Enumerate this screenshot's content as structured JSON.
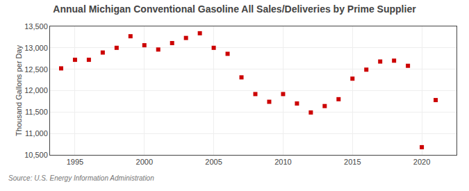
{
  "chart_data": {
    "type": "scatter",
    "title": "Annual Michigan Conventional Gasoline All Sales/Deliveries by Prime Supplier",
    "ylabel": "Thousand Gallons per Day",
    "source": "Source: U.S. Energy Information Administration",
    "x": [
      1994,
      1995,
      1996,
      1997,
      1998,
      1999,
      2000,
      2001,
      2002,
      2003,
      2004,
      2005,
      2006,
      2007,
      2008,
      2009,
      2010,
      2011,
      2012,
      2013,
      2014,
      2015,
      2016,
      2017,
      2018,
      2019,
      2020,
      2021
    ],
    "values": [
      12520,
      12720,
      12720,
      12890,
      13000,
      13270,
      13060,
      12960,
      13110,
      13230,
      13340,
      13000,
      12860,
      12310,
      11920,
      11740,
      11920,
      11700,
      11490,
      11640,
      11800,
      12280,
      12490,
      12680,
      12700,
      12580,
      10680,
      11780
    ],
    "color": "#cc0000",
    "marker": "square",
    "xlim": [
      1993.2,
      2022.5
    ],
    "xticks": [
      1995,
      2000,
      2005,
      2010,
      2015,
      2020
    ],
    "ylim": [
      10500,
      13500
    ],
    "yticks": [
      {
        "value": 10500,
        "label": "10,500"
      },
      {
        "value": 11000,
        "label": "11,000"
      },
      {
        "value": 11500,
        "label": "11,500"
      },
      {
        "value": 12000,
        "label": "12,000"
      },
      {
        "value": 12500,
        "label": "12,500"
      },
      {
        "value": 13000,
        "label": "13,000"
      },
      {
        "value": 13500,
        "label": "13,500"
      }
    ],
    "grid": true
  }
}
